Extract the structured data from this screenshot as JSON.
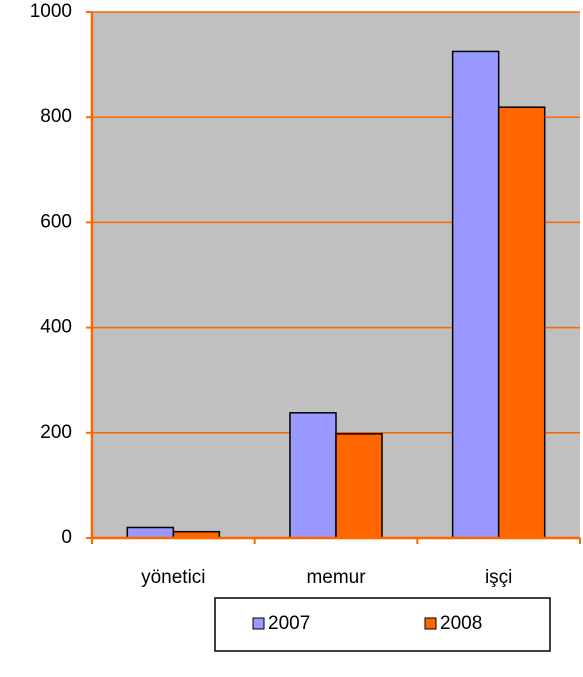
{
  "chart_data": {
    "type": "bar",
    "categories": [
      "yönetici",
      "memur",
      "işçi"
    ],
    "series": [
      {
        "name": "2007",
        "color": "#9999ff",
        "values": [
          20,
          238,
          925
        ]
      },
      {
        "name": "2008",
        "color": "#ff6600",
        "values": [
          12,
          198,
          819
        ]
      }
    ],
    "ylim": [
      0,
      1000
    ],
    "yticks": [
      0,
      200,
      400,
      600,
      800,
      1000
    ],
    "grid": true,
    "grid_color": "#ff6600",
    "plot_background": "#c0c0c0",
    "legend": "bottom"
  }
}
